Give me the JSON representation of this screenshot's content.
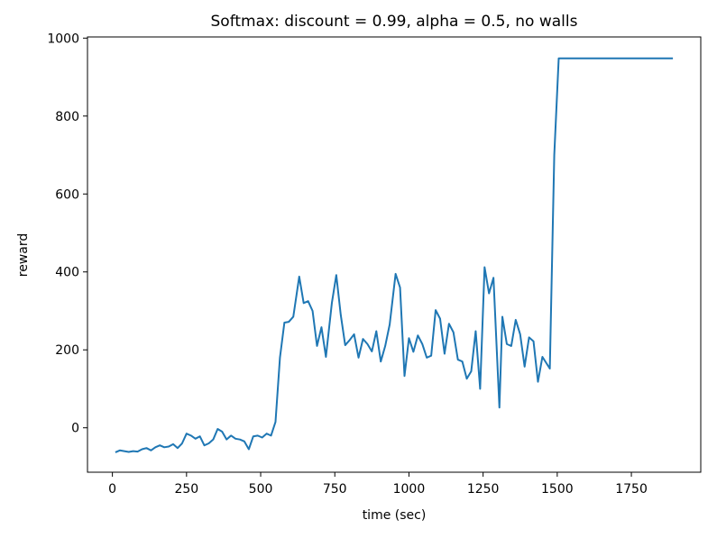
{
  "chart_data": {
    "type": "line",
    "title": "Softmax: discount = 0.99, alpha = 0.5, no walls",
    "x_label": "time (sec)",
    "y_label": "reward",
    "x": [
      10,
      25,
      40,
      55,
      70,
      85,
      100,
      115,
      130,
      145,
      160,
      175,
      190,
      205,
      220,
      235,
      250,
      265,
      280,
      295,
      310,
      325,
      340,
      355,
      370,
      385,
      400,
      415,
      430,
      445,
      460,
      475,
      490,
      505,
      520,
      535,
      550,
      565,
      580,
      595,
      610,
      630,
      645,
      660,
      675,
      690,
      705,
      720,
      740,
      755,
      770,
      785,
      800,
      815,
      830,
      845,
      860,
      875,
      890,
      905,
      920,
      935,
      955,
      970,
      985,
      1000,
      1015,
      1030,
      1045,
      1060,
      1075,
      1090,
      1105,
      1120,
      1135,
      1150,
      1165,
      1180,
      1195,
      1210,
      1225,
      1240,
      1255,
      1270,
      1285,
      1305,
      1315,
      1330,
      1345,
      1360,
      1375,
      1390,
      1405,
      1420,
      1435,
      1450,
      1475,
      1490,
      1505,
      1890
    ],
    "series": [
      {
        "name": "reward",
        "color": "#1f77b4",
        "values": [
          -63,
          -58,
          -60,
          -62,
          -60,
          -61,
          -55,
          -52,
          -58,
          -50,
          -45,
          -50,
          -48,
          -42,
          -52,
          -40,
          -15,
          -20,
          -28,
          -22,
          -45,
          -40,
          -30,
          -3,
          -10,
          -30,
          -20,
          -28,
          -30,
          -35,
          -55,
          -22,
          -20,
          -25,
          -15,
          -20,
          15,
          180,
          270,
          272,
          285,
          388,
          320,
          325,
          300,
          210,
          258,
          182,
          320,
          392,
          290,
          212,
          225,
          240,
          180,
          228,
          215,
          196,
          248,
          170,
          210,
          265,
          395,
          360,
          133,
          230,
          195,
          237,
          215,
          180,
          185,
          302,
          280,
          190,
          267,
          245,
          175,
          170,
          126,
          145,
          248,
          100,
          412,
          345,
          385,
          52,
          285,
          215,
          210,
          277,
          240,
          157,
          232,
          222,
          118,
          182,
          152,
          700,
          948,
          948
        ]
      }
    ],
    "xlim": [
      -84,
      1984
    ],
    "ylim": [
      -114,
      1003
    ],
    "xticks": [
      0,
      250,
      500,
      750,
      1000,
      1250,
      1500,
      1750
    ],
    "yticks": [
      0,
      200,
      400,
      600,
      800,
      1000
    ]
  }
}
